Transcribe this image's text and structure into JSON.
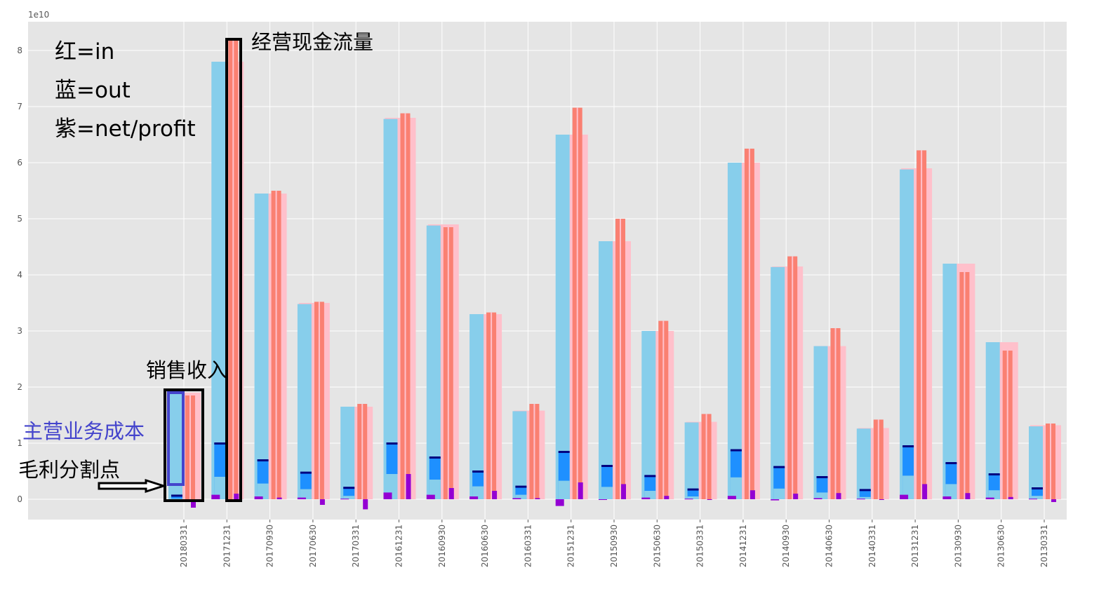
{
  "chart_data": {
    "type": "bar",
    "title": "",
    "xlabel": "",
    "ylabel": "",
    "y_scale_exponent": "1e10",
    "ylim": [
      -0.35,
      8.5
    ],
    "yticks": [
      0,
      1,
      2,
      3,
      4,
      5,
      6,
      7,
      8
    ],
    "grid": true,
    "categories": [
      "20180331",
      "20171231",
      "20170930",
      "20170630",
      "20170331",
      "20161231",
      "20160930",
      "20160630",
      "20160331",
      "20151231",
      "20150930",
      "20150630",
      "20150331",
      "20141231",
      "20140930",
      "20140630",
      "20140331",
      "20131231",
      "20130930",
      "20130630",
      "20130331"
    ],
    "series": [
      {
        "name": "",
        "color": "#ffc0cb",
        "values": [
          1.9,
          7.8,
          5.45,
          3.5,
          1.65,
          6.8,
          4.9,
          3.3,
          1.58,
          6.5,
          4.6,
          3.0,
          1.38,
          6.0,
          4.15,
          2.73,
          1.27,
          5.9,
          4.2,
          2.8,
          1.32
        ]
      },
      {
        "name": "",
        "color": "#87ceeb",
        "values": [
          1.9,
          7.8,
          5.45,
          3.48,
          1.65,
          6.78,
          4.88,
          3.3,
          1.57,
          6.5,
          4.6,
          3.0,
          1.37,
          6.0,
          4.14,
          2.73,
          1.26,
          5.88,
          4.2,
          2.8,
          1.3
        ]
      },
      {
        "name": "",
        "color": "#1e90ff",
        "values": [
          0.07,
          1.0,
          0.7,
          0.48,
          0.21,
          1.0,
          0.75,
          0.5,
          0.23,
          0.85,
          0.6,
          0.42,
          0.18,
          0.88,
          0.58,
          0.4,
          0.17,
          0.95,
          0.65,
          0.45,
          0.2
        ]
      },
      {
        "name": "",
        "color": "#87ceeb",
        "values": [
          0.01,
          0.4,
          0.28,
          0.18,
          0.06,
          0.45,
          0.35,
          0.23,
          0.08,
          0.33,
          0.22,
          0.15,
          0.05,
          0.39,
          0.19,
          0.12,
          0.04,
          0.42,
          0.27,
          0.16,
          0.06
        ]
      },
      {
        "name": "",
        "color": "#fa8072",
        "values": [
          1.85,
          8.2,
          5.5,
          3.52,
          1.7,
          6.88,
          4.85,
          3.33,
          1.7,
          6.98,
          5.0,
          3.18,
          1.52,
          6.25,
          4.33,
          3.05,
          1.42,
          6.22,
          4.05,
          2.65,
          1.35
        ]
      },
      {
        "name": "",
        "color": "#9400d3",
        "values": [
          -0.15,
          0.1,
          0.03,
          -0.1,
          -0.18,
          0.45,
          0.2,
          0.15,
          0.02,
          0.3,
          0.27,
          0.06,
          0.0,
          0.16,
          0.1,
          0.11,
          0.0,
          0.27,
          0.11,
          0.04,
          -0.05
        ]
      },
      {
        "name": "",
        "color": "#9400d3",
        "values": [
          0.0,
          0.08,
          0.05,
          0.03,
          0.01,
          0.12,
          0.08,
          0.05,
          0.02,
          -0.12,
          0.0,
          0.03,
          0.01,
          0.06,
          -0.02,
          0.02,
          0.01,
          0.08,
          0.05,
          0.03,
          0.01
        ]
      }
    ]
  },
  "legend": {
    "line1": "红=in",
    "line2": "蓝=out",
    "line3": "紫=net/profit"
  },
  "annotations": {
    "operating_cash_flow": "经营现金流量",
    "sales_revenue": "销售收入",
    "main_business_cost": "主营业务成本",
    "gross_profit_point": "毛利分割点"
  }
}
